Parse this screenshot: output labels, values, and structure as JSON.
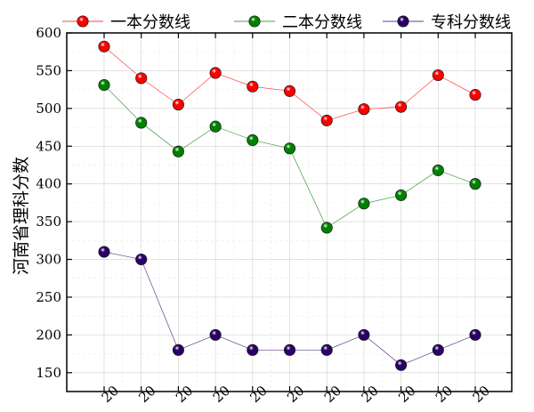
{
  "chart_data": {
    "type": "line",
    "title": "",
    "xlabel": "",
    "ylabel": "河南省理科分数",
    "ylim": [
      125,
      600
    ],
    "yticks": [
      150,
      200,
      250,
      300,
      350,
      400,
      450,
      500,
      550,
      600
    ],
    "x_tick_labels": [
      "20",
      "20",
      "20",
      "20",
      "20",
      "20",
      "20",
      "20",
      "20",
      "20",
      "20"
    ],
    "grid": true,
    "legend_position": "top",
    "series": [
      {
        "name": "一本分数线",
        "color": "#ff0000",
        "values": [
          582,
          540,
          505,
          547,
          529,
          523,
          484,
          499,
          502,
          544,
          518
        ]
      },
      {
        "name": "二本分数线",
        "color": "#008000",
        "values": [
          531,
          481,
          443,
          476,
          458,
          447,
          342,
          374,
          385,
          418,
          400
        ]
      },
      {
        "name": "专科分数线",
        "color": "#2a0066",
        "values": [
          310,
          300,
          180,
          200,
          180,
          180,
          180,
          200,
          160,
          180,
          200
        ]
      }
    ]
  }
}
